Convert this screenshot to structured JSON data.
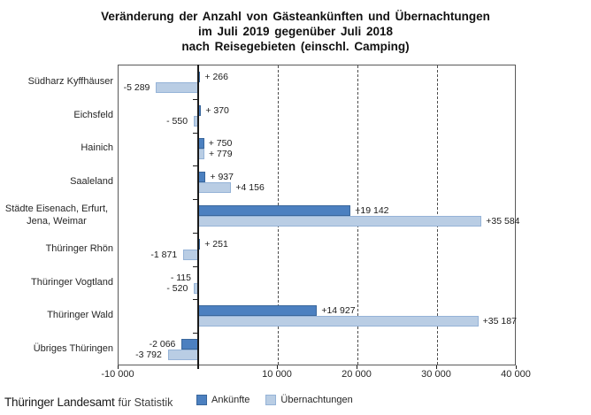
{
  "chart_data": {
    "type": "bar",
    "orientation": "horizontal",
    "title": "Veränderung der Anzahl von Gästeankünften und Übernachtungen im Juli 2019 gegenüber Juli 2018 nach Reisegebieten (einschl. Camping)",
    "title_lines": [
      "Veränderung der Anzahl von Gästeankünften und Übernachtungen",
      "im Juli 2019 gegenüber Juli 2018",
      "nach Reisegebieten (einschl. Camping)"
    ],
    "categories": [
      [
        "Südharz Kyffhäuser"
      ],
      [
        "Eichsfeld"
      ],
      [
        "Hainich"
      ],
      [
        "Saaleland"
      ],
      [
        "Städte Eisenach, Erfurt,",
        "Jena, Weimar"
      ],
      [
        "Thüringer Rhön"
      ],
      [
        "Thüringer Vogtland"
      ],
      [
        "Thüringer Wald"
      ],
      [
        "Übriges Thüringen"
      ]
    ],
    "series": [
      {
        "name": "Ankünfte",
        "color": "#4c80c0",
        "border_color": "#3a679c",
        "values": [
          266,
          370,
          750,
          937,
          19142,
          251,
          -115,
          14927,
          -2066
        ],
        "labels": [
          "+ 266",
          "+ 370",
          "+ 750",
          "+ 937",
          "+19 142",
          "+ 251",
          "- 115",
          "+14 927",
          "-2 066"
        ]
      },
      {
        "name": "Übernachtungen",
        "color": "#b9cde4",
        "border_color": "#95b3d7",
        "values": [
          -5289,
          -550,
          779,
          4156,
          35584,
          -1871,
          -520,
          35187,
          -3792
        ],
        "labels": [
          "-5 289",
          "- 550",
          "+ 779",
          "+4 156",
          "+35 584",
          "-1 871",
          "- 520",
          "+35 187",
          "-3 792"
        ]
      }
    ],
    "xlim": [
      -10000,
      40000
    ],
    "x_ticks": [
      {
        "value": -10000,
        "label": "-10 000"
      },
      {
        "value": 0,
        "label": ""
      },
      {
        "value": 10000,
        "label": "10 000"
      },
      {
        "value": 20000,
        "label": "20 000"
      },
      {
        "value": 30000,
        "label": "30 000"
      },
      {
        "value": 40000,
        "label": "40 000"
      }
    ],
    "gridline_values": [
      10000,
      20000,
      30000
    ],
    "legend_position": "bottom",
    "grid": "dashed-vertical"
  },
  "footer": {
    "part1": "Thüringer Landesamt",
    "part2": "für Statistik"
  }
}
